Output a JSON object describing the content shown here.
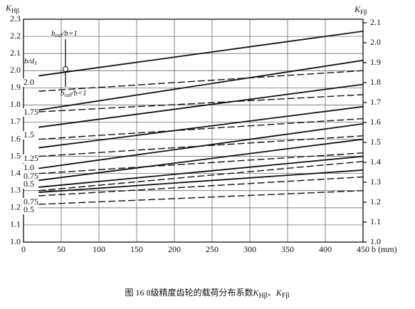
{
  "chart_data": {
    "type": "line",
    "x_label": "b (mm)",
    "y_label": {
      "main": "K",
      "sub": "Hβ"
    },
    "y2_label": {
      "main": "K",
      "sub": "Fβ"
    },
    "caption": {
      "prefix": "图 16   8级精度齿轮的载荷分布系数",
      "k1": "K",
      "s1": "Hβ",
      "sep": "、",
      "k2": "K",
      "s2": "Fβ"
    },
    "xlim": [
      0,
      450
    ],
    "xticks": [
      0,
      50,
      100,
      150,
      200,
      250,
      300,
      350,
      400,
      450
    ],
    "ylim": [
      1.0,
      2.3
    ],
    "yticks": [
      {
        "value": 1.0,
        "label": "1.0"
      },
      1.1,
      1.2,
      1.3,
      1.4,
      1.5,
      1.6,
      1.7,
      1.8,
      1.9,
      {
        "value": 2.0,
        "label": "2.0"
      },
      2.1,
      2.2,
      2.3
    ],
    "y2lim": [
      1.0,
      2.1
    ],
    "y2ticks": [
      {
        "value": 1.0,
        "label": "1.0"
      },
      1.1,
      1.2,
      1.3,
      1.4,
      1.5,
      1.6,
      1.7,
      1.8,
      1.9,
      {
        "value": 2.0,
        "label": "2.0"
      },
      2.1
    ],
    "grid": true,
    "x": [
      20,
      450
    ],
    "series": [
      {
        "color": "#111",
        "dash": false,
        "values": [
          1.97,
          2.23
        ]
      },
      {
        "color": "#111",
        "dash": false,
        "values": [
          1.77,
          2.06
        ]
      },
      {
        "color": "#111",
        "dash": true,
        "values": [
          1.88,
          2.0
        ]
      },
      {
        "color": "#111",
        "dash": false,
        "values": [
          1.67,
          1.92
        ]
      },
      {
        "color": "#111",
        "dash": true,
        "values": [
          1.76,
          1.86
        ]
      },
      {
        "color": "#111",
        "dash": false,
        "values": [
          1.55,
          1.79
        ]
      },
      {
        "color": "#111",
        "dash": true,
        "values": [
          1.6,
          1.72
        ]
      },
      {
        "color": "#111",
        "dash": false,
        "values": [
          1.43,
          1.69
        ]
      },
      {
        "color": "#111",
        "dash": true,
        "values": [
          1.5,
          1.62
        ]
      },
      {
        "color": "#111",
        "dash": false,
        "values": [
          1.36,
          1.6
        ]
      },
      {
        "color": "#111",
        "dash": true,
        "values": [
          1.4,
          1.52
        ]
      },
      {
        "color": "#111",
        "dash": false,
        "values": [
          1.32,
          1.5
        ]
      },
      {
        "color": "#111",
        "dash": true,
        "values": [
          1.3,
          1.47
        ]
      },
      {
        "color": "#111",
        "dash": false,
        "values": [
          1.29,
          1.42
        ]
      },
      {
        "color": "#111",
        "dash": true,
        "values": [
          1.27,
          1.38
        ]
      },
      {
        "color": "#111",
        "dash": true,
        "values": [
          1.22,
          1.3
        ]
      }
    ],
    "annotations": [
      {
        "b": "b",
        "sub": "cal",
        "rest": "/b=1"
      },
      {
        "b": "b",
        "sub": "cal",
        "rest": "/b<1"
      },
      {
        "b": "b/d",
        "sub": "1",
        "rest": ""
      }
    ],
    "ratio_labels": [
      "2.0",
      "1.75",
      "1.5",
      "1.25",
      "1.0",
      "0.75",
      "0.5",
      "0.75",
      "0.5"
    ]
  }
}
